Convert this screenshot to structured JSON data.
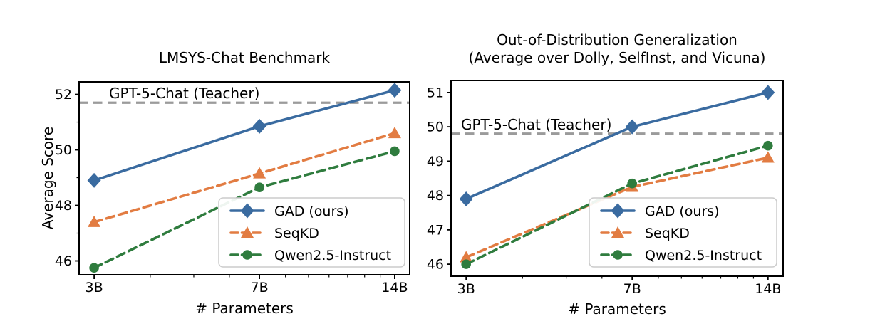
{
  "figure": {
    "background": "#ffffff",
    "text_color": "#000000"
  },
  "chart_data": [
    {
      "type": "line",
      "title_lines": [
        "LMSYS-Chat Benchmark"
      ],
      "xlabel": "# Parameters",
      "ylabel": "Average Score",
      "x_categories": [
        "3B",
        "7B",
        "14B"
      ],
      "x_values": [
        3,
        7,
        14
      ],
      "x_scale": "log",
      "x_minor_ticks": [
        4,
        5,
        6,
        8,
        9,
        10,
        11,
        12,
        13
      ],
      "yticks": [
        46,
        48,
        50,
        52
      ],
      "y_minor_ticks": [
        47,
        49,
        51
      ],
      "ylim": [
        45.5,
        52.45
      ],
      "grid": false,
      "legend_position": "lower right",
      "reference_line": {
        "label": "GPT-5-Chat (Teacher)",
        "value": 51.7,
        "color": "#9b9b9b",
        "style": "dashed"
      },
      "series": [
        {
          "name": "GAD (ours)",
          "color": "#3a6ba0",
          "marker": "diamond",
          "line_style": "solid",
          "values": [
            48.9,
            50.85,
            52.15
          ]
        },
        {
          "name": "SeqKD",
          "color": "#e27c42",
          "marker": "triangle",
          "line_style": "dashed",
          "values": [
            47.4,
            49.15,
            50.6
          ]
        },
        {
          "name": "Qwen2.5-Instruct",
          "color": "#2f7c3e",
          "marker": "circle",
          "line_style": "dashed",
          "values": [
            45.75,
            48.65,
            49.95
          ]
        }
      ]
    },
    {
      "type": "line",
      "title_lines": [
        "Out-of-Distribution Generalization",
        "(Average over Dolly, SelfInst, and Vicuna)"
      ],
      "xlabel": "# Parameters",
      "ylabel": "",
      "x_categories": [
        "3B",
        "7B",
        "14B"
      ],
      "x_values": [
        3,
        7,
        14
      ],
      "x_scale": "log",
      "x_minor_ticks": [
        4,
        5,
        6,
        8,
        9,
        10,
        11,
        12,
        13
      ],
      "yticks": [
        46,
        47,
        48,
        49,
        50,
        51
      ],
      "y_minor_ticks": [],
      "ylim": [
        45.65,
        51.35
      ],
      "grid": false,
      "legend_position": "lower right",
      "reference_line": {
        "label": "GPT-5-Chat (Teacher)",
        "value": 49.8,
        "color": "#9b9b9b",
        "style": "dashed"
      },
      "series": [
        {
          "name": "GAD (ours)",
          "color": "#3a6ba0",
          "marker": "diamond",
          "line_style": "solid",
          "values": [
            47.9,
            50.0,
            51.0
          ]
        },
        {
          "name": "SeqKD",
          "color": "#e27c42",
          "marker": "triangle",
          "line_style": "dashed",
          "values": [
            46.2,
            48.25,
            49.1
          ]
        },
        {
          "name": "Qwen2.5-Instruct",
          "color": "#2f7c3e",
          "marker": "circle",
          "line_style": "dashed",
          "values": [
            46.0,
            48.35,
            49.45
          ]
        }
      ]
    }
  ]
}
